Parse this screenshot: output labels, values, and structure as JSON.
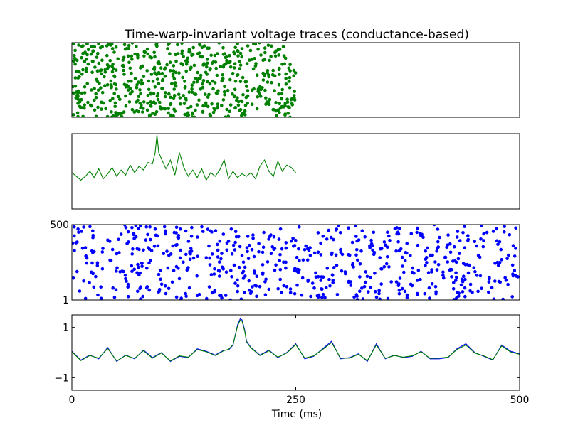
{
  "figure": {
    "title": "Time-warp-invariant voltage traces (conductance-based)",
    "xlabel": "Time (ms)"
  },
  "colors": {
    "green": "#008000",
    "blue": "#0000ff",
    "axes": "#000000",
    "background": "#ffffff"
  },
  "chart_data": [
    {
      "type": "scatter",
      "panel": "top-raster",
      "xlim": [
        0,
        500
      ],
      "ylim": [
        1,
        500
      ],
      "show_yticks": false,
      "show_xticks": false,
      "color": "green",
      "n_points": 650,
      "x_range": [
        0,
        250
      ],
      "seed": 7,
      "note_values": "dense random spike raster, spikes between 0 and 250 ms"
    },
    {
      "type": "line",
      "panel": "voltage-warped",
      "xlim": [
        0,
        500
      ],
      "ylim": [
        -1.5,
        1.5
      ],
      "show_yticks": false,
      "show_xticks": false,
      "color": "green",
      "x": [
        0,
        5,
        10,
        15,
        20,
        25,
        30,
        35,
        40,
        45,
        50,
        55,
        60,
        65,
        70,
        75,
        80,
        85,
        90,
        93,
        95,
        97,
        100,
        105,
        110,
        115,
        120,
        125,
        130,
        135,
        140,
        145,
        150,
        155,
        160,
        165,
        170,
        175,
        180,
        185,
        190,
        195,
        200,
        205,
        210,
        215,
        220,
        225,
        230,
        235,
        240,
        245,
        250
      ],
      "y": [
        -0.05,
        -0.2,
        -0.35,
        -0.2,
        0.0,
        -0.25,
        0.1,
        -0.3,
        -0.1,
        0.15,
        -0.2,
        0.05,
        -0.15,
        0.25,
        -0.05,
        0.2,
        0.05,
        0.35,
        0.3,
        0.75,
        1.45,
        0.75,
        0.5,
        0.1,
        0.45,
        -0.15,
        0.75,
        0.15,
        -0.2,
        0.05,
        -0.25,
        0.1,
        -0.35,
        -0.05,
        -0.2,
        0.05,
        0.45,
        -0.3,
        0.0,
        -0.25,
        -0.1,
        -0.2,
        -0.05,
        -0.3,
        0.2,
        0.45,
        0.0,
        -0.2,
        0.4,
        0.0,
        0.25,
        0.15,
        -0.05
      ]
    },
    {
      "type": "scatter",
      "panel": "bottom-raster",
      "xlim": [
        0,
        500
      ],
      "ylim": [
        1,
        500
      ],
      "yticks": [
        "1",
        "500"
      ],
      "show_xticks": false,
      "color": "blue",
      "n_points": 650,
      "x_range": [
        0,
        500
      ],
      "seed": 19
    },
    {
      "type": "line",
      "panel": "voltage-compare",
      "xlim": [
        0,
        500
      ],
      "ylim": [
        -1.5,
        1.5
      ],
      "yticks": [
        "1",
        "−1"
      ],
      "ytick_values": [
        1,
        -1
      ],
      "xticks": [
        "0",
        "250",
        "500"
      ],
      "xtick_values": [
        0,
        250,
        500
      ],
      "series": [
        {
          "color": "blue",
          "x": [
            0,
            10,
            20,
            30,
            40,
            50,
            60,
            70,
            80,
            90,
            100,
            110,
            120,
            130,
            140,
            150,
            160,
            170,
            175,
            180,
            185,
            188,
            190,
            193,
            195,
            200,
            210,
            220,
            230,
            240,
            250,
            260,
            270,
            280,
            290,
            300,
            310,
            320,
            330,
            340,
            350,
            360,
            370,
            380,
            390,
            400,
            410,
            420,
            430,
            440,
            450,
            460,
            470,
            480,
            490,
            500
          ],
          "y": [
            0.05,
            -0.3,
            -0.1,
            -0.25,
            0.2,
            -0.35,
            -0.1,
            -0.25,
            0.1,
            -0.2,
            0.0,
            -0.35,
            -0.15,
            -0.2,
            0.15,
            0.05,
            -0.1,
            0.1,
            0.1,
            0.3,
            1.1,
            1.35,
            1.3,
            0.9,
            0.45,
            0.2,
            -0.1,
            0.1,
            -0.2,
            0.0,
            0.35,
            -0.25,
            -0.15,
            0.15,
            0.45,
            -0.25,
            -0.2,
            -0.05,
            -0.35,
            0.35,
            -0.25,
            -0.1,
            -0.2,
            -0.15,
            0.05,
            -0.25,
            -0.25,
            -0.2,
            0.15,
            0.35,
            0.0,
            -0.15,
            -0.3,
            0.3,
            0.05,
            -0.05
          ]
        },
        {
          "color": "green",
          "x": [
            0,
            10,
            20,
            30,
            40,
            50,
            60,
            70,
            80,
            90,
            100,
            110,
            120,
            130,
            140,
            150,
            160,
            170,
            175,
            180,
            185,
            188,
            190,
            193,
            195,
            200,
            210,
            220,
            230,
            240,
            250,
            260,
            270,
            280,
            290,
            300,
            310,
            320,
            330,
            340,
            350,
            360,
            370,
            380,
            390,
            400,
            410,
            420,
            430,
            440,
            450,
            460,
            470,
            480,
            490,
            500
          ],
          "y": [
            0.03,
            -0.32,
            -0.12,
            -0.22,
            0.16,
            -0.33,
            -0.12,
            -0.23,
            0.07,
            -0.22,
            -0.02,
            -0.33,
            -0.13,
            -0.18,
            0.12,
            0.03,
            -0.12,
            0.08,
            0.13,
            0.32,
            1.05,
            1.3,
            1.25,
            0.85,
            0.42,
            0.18,
            -0.12,
            0.07,
            -0.18,
            -0.02,
            0.32,
            -0.22,
            -0.13,
            0.12,
            0.4,
            -0.22,
            -0.22,
            -0.07,
            -0.32,
            0.3,
            -0.23,
            -0.12,
            -0.18,
            -0.13,
            0.03,
            -0.23,
            -0.22,
            -0.18,
            0.12,
            0.3,
            -0.02,
            -0.13,
            -0.28,
            0.26,
            0.02,
            -0.07
          ]
        }
      ]
    }
  ]
}
